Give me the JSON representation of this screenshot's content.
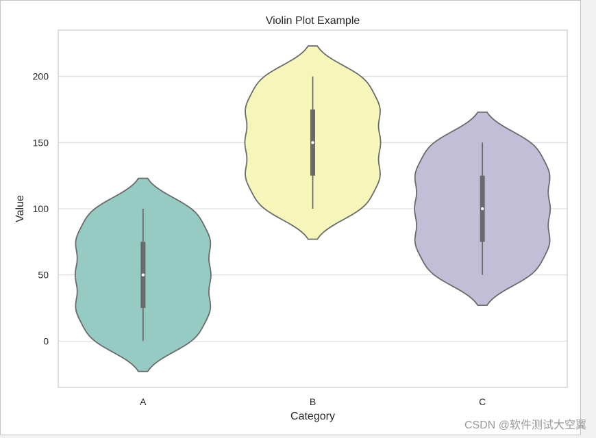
{
  "window": {
    "background": "#f2f2f2"
  },
  "figure": {
    "background": "#ffffff",
    "border_color": "#c4c4c4"
  },
  "watermark": {
    "text": "CSDN @软件测试大空翼"
  },
  "chart_data": {
    "type": "violin",
    "title": "Violin Plot Example",
    "xlabel": "Category",
    "ylabel": "Value",
    "categories": [
      "A",
      "B",
      "C"
    ],
    "yticks": [
      0,
      50,
      100,
      150,
      200
    ],
    "ylim": [
      -35,
      235
    ],
    "grid": true,
    "colors": {
      "outline": "#6a6a6a",
      "grid": "#d9d9d9",
      "spine": "#cccccc",
      "median": "#ffffff"
    },
    "series": [
      {
        "color": "#95cbc2",
        "min": 0,
        "q1": 25,
        "median": 50,
        "q3": 75,
        "max": 100,
        "violin_range": [
          -23,
          123
        ]
      },
      {
        "color": "#f6f6bb",
        "min": 100,
        "q1": 125,
        "median": 150,
        "q3": 175,
        "max": 200,
        "violin_range": [
          77,
          223
        ]
      },
      {
        "color": "#c2bed7",
        "min": 50,
        "q1": 75,
        "median": 100,
        "q3": 125,
        "max": 150,
        "violin_range": [
          27,
          173
        ]
      }
    ]
  }
}
